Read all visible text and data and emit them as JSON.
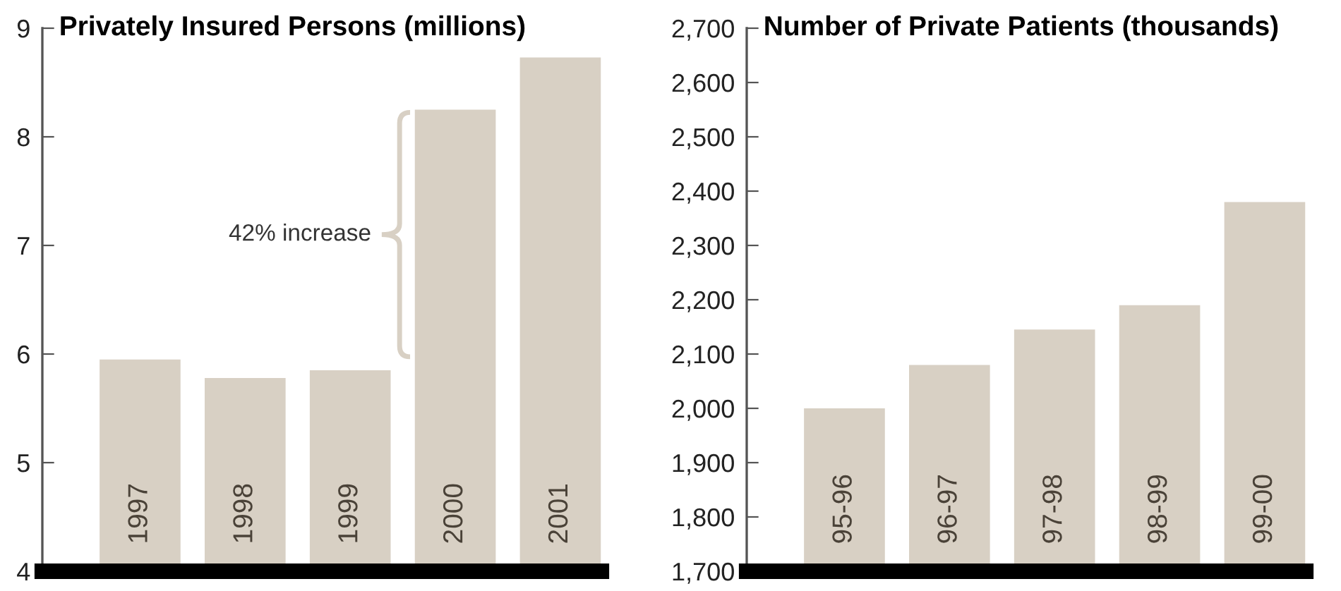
{
  "chart_data": [
    {
      "type": "bar",
      "title": "Privately Insured Persons (millions)",
      "categories": [
        "1997",
        "1998",
        "1999",
        "2000",
        "2001"
      ],
      "values": [
        5.95,
        5.78,
        5.85,
        8.25,
        8.73
      ],
      "color": "#d8d0c4",
      "ylim": [
        4,
        9
      ],
      "yticks": [
        4,
        5,
        6,
        7,
        8,
        9
      ],
      "grid": false,
      "legend": false,
      "annotations": [
        "42% increase"
      ]
    },
    {
      "type": "bar",
      "title": "Number of Private Patients (thousands)",
      "categories": [
        "95-96",
        "96-97",
        "97-98",
        "98-99",
        "99-00"
      ],
      "values": [
        2000,
        2080,
        2145,
        2190,
        2380
      ],
      "color": "#d8d0c4",
      "ylim": [
        1700,
        2700
      ],
      "yticks": [
        {
          "value": 1700,
          "label": "1,700"
        },
        {
          "value": 1800,
          "label": "1,800"
        },
        {
          "value": 1900,
          "label": "1,900"
        },
        {
          "value": 2000,
          "label": "2,000"
        },
        {
          "value": 2100,
          "label": "2,100"
        },
        {
          "value": 2200,
          "label": "2,200"
        },
        {
          "value": 2300,
          "label": "2,300"
        },
        {
          "value": 2400,
          "label": "2,400"
        },
        {
          "value": 2500,
          "label": "2,500"
        },
        {
          "value": 2600,
          "label": "2,600"
        },
        {
          "value": 2700,
          "label": "2,700"
        }
      ],
      "grid": false,
      "legend": false
    }
  ]
}
